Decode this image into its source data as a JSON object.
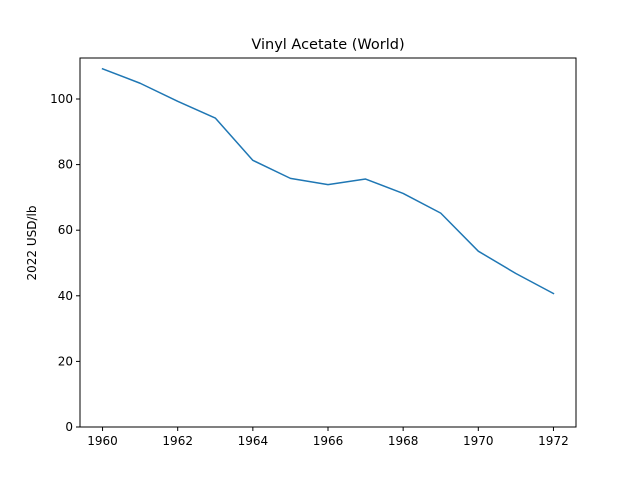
{
  "chart_data": {
    "type": "line",
    "title": "Vinyl Acetate (World)",
    "xlabel": "",
    "ylabel": "2022 USD/lb",
    "xlim": [
      1959.4,
      1972.6
    ],
    "ylim": [
      0,
      112.5
    ],
    "xticks": [
      1960,
      1962,
      1964,
      1966,
      1968,
      1970,
      1972
    ],
    "yticks": [
      0,
      20,
      40,
      60,
      80,
      100
    ],
    "grid": false,
    "series": [
      {
        "color": "#1f77b4",
        "x": [
          1960,
          1961,
          1962,
          1963,
          1964,
          1965,
          1966,
          1967,
          1968,
          1969,
          1970,
          1971,
          1972
        ],
        "y": [
          109.2,
          104.8,
          99.3,
          94.2,
          81.3,
          75.8,
          73.9,
          75.6,
          71.2,
          65.2,
          53.6,
          46.8,
          40.7
        ]
      }
    ]
  }
}
